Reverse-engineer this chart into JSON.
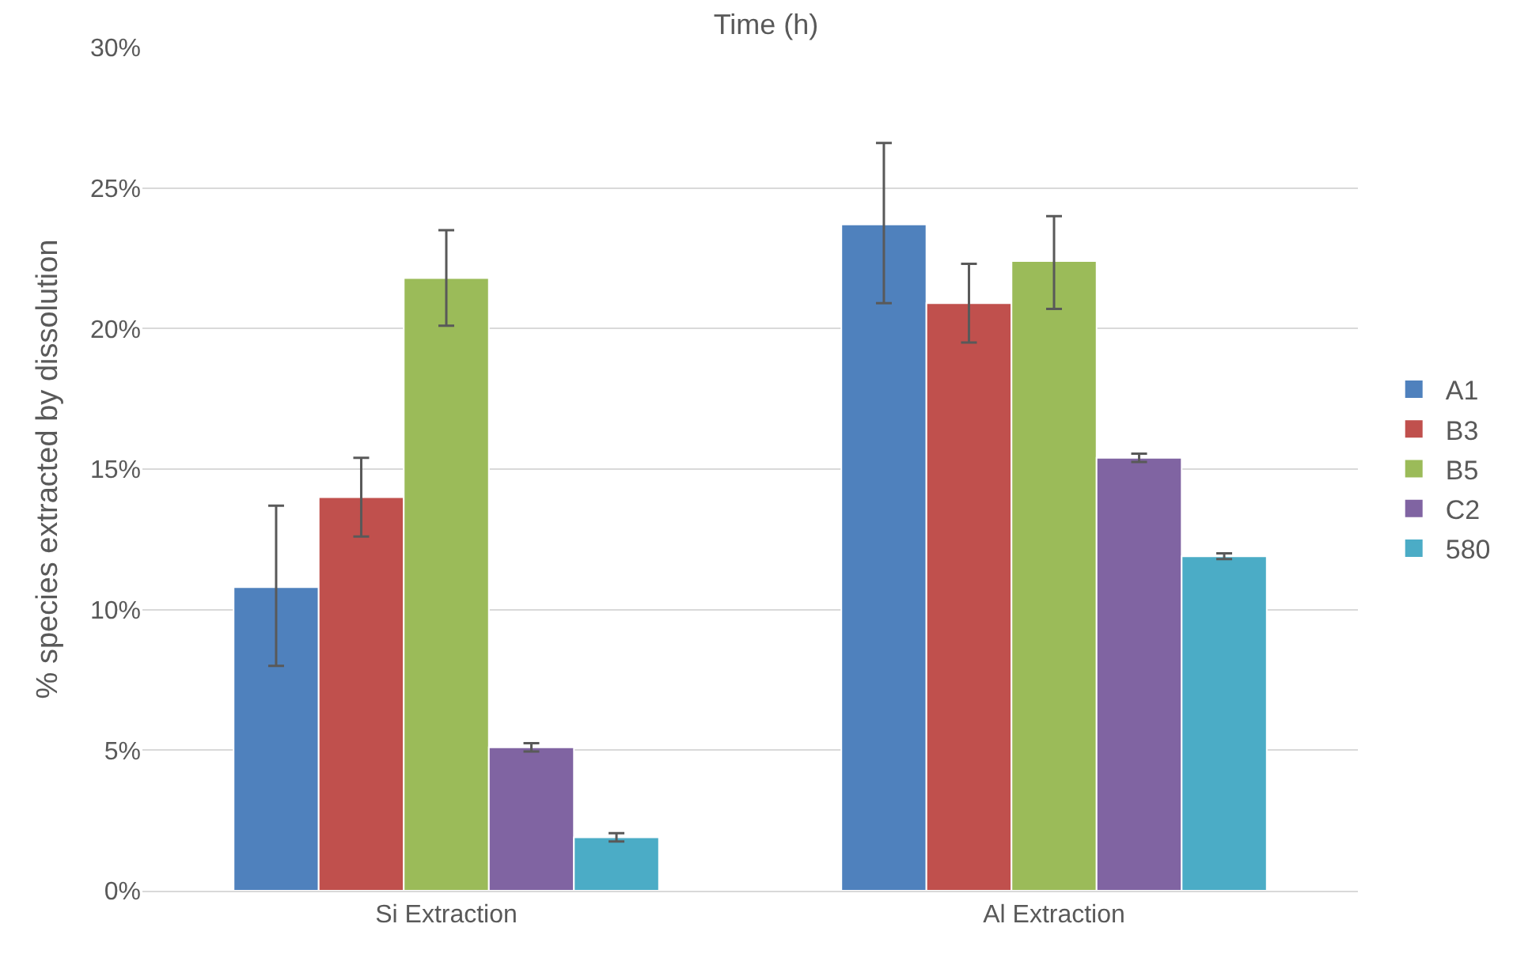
{
  "chart_data": {
    "type": "bar",
    "title": "Time (h)",
    "ylabel": "% species extracted by dissolution",
    "categories": [
      "Si Extraction",
      "Al Extraction"
    ],
    "series": [
      {
        "name": "A1",
        "color": "#4f81bd",
        "values": [
          10.8,
          23.7
        ],
        "errors": [
          [
            8.0,
            13.7
          ],
          [
            20.9,
            26.6
          ]
        ]
      },
      {
        "name": "B3",
        "color": "#c0504d",
        "values": [
          14.0,
          20.9
        ],
        "errors": [
          [
            12.6,
            15.4
          ],
          [
            19.5,
            22.3
          ]
        ]
      },
      {
        "name": "B5",
        "color": "#9bbb59",
        "values": [
          21.8,
          22.4
        ],
        "errors": [
          [
            20.1,
            23.5
          ],
          [
            20.7,
            24.0
          ]
        ]
      },
      {
        "name": "C2",
        "color": "#8064a2",
        "values": [
          5.1,
          15.4
        ],
        "errors": [
          0.15,
          0.15
        ]
      },
      {
        "name": "580",
        "color": "#4bacc6",
        "values": [
          1.9,
          11.9
        ],
        "errors": [
          0.15,
          0.1
        ]
      }
    ],
    "ylim": [
      0,
      30
    ],
    "yticks": [
      {
        "value": 0,
        "label": "0%"
      },
      {
        "value": 5,
        "label": "5%"
      },
      {
        "value": 10,
        "label": "10%"
      },
      {
        "value": 15,
        "label": "15%"
      },
      {
        "value": 20,
        "label": "20%"
      },
      {
        "value": 25,
        "label": "25%"
      },
      {
        "value": 30,
        "label": "30%"
      }
    ],
    "grid": "y",
    "legend": "right"
  }
}
